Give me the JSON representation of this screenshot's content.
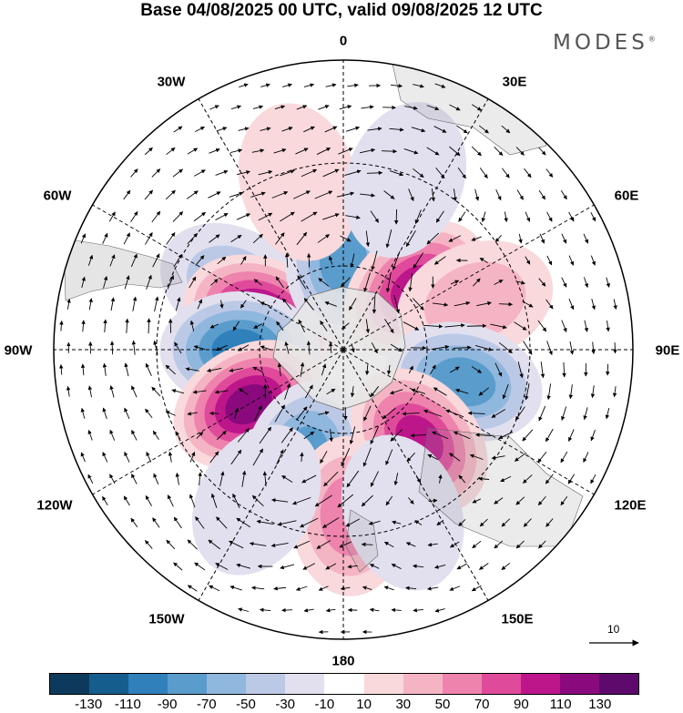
{
  "title": "Base 04/08/2025 00 UTC, valid 09/08/2025 12 UTC",
  "brand": "MODES",
  "brand_mark": "®",
  "longitude_labels": {
    "n0": "0",
    "n30e": "30E",
    "n60e": "60E",
    "n90e": "90E",
    "n120e": "120E",
    "n150e": "150E",
    "n180": "180",
    "n150w": "150W",
    "n120w": "120W",
    "n90w": "90W",
    "n60w": "60W",
    "n30w": "30W"
  },
  "vector_scale_label": "10",
  "colorbar": {
    "ticks": [
      "-130",
      "-110",
      "-90",
      "-70",
      "-50",
      "-30",
      "-10",
      "10",
      "30",
      "50",
      "70",
      "90",
      "110",
      "130"
    ],
    "colors": [
      "#0d3a5c",
      "#155d8c",
      "#2f80bb",
      "#5a9ccc",
      "#90b7de",
      "#bcc9e6",
      "#e2e0ef",
      "#ffffff",
      "#f9d9dc",
      "#f5b4c4",
      "#ee83ad",
      "#df4a9b",
      "#bd168b",
      "#8a0a7e",
      "#5d0a6c"
    ]
  },
  "anomalies": [
    {
      "label": "low",
      "lon": -60,
      "lat": -45,
      "value": -40
    },
    {
      "label": "high",
      "lon": -68,
      "lat": -57,
      "value": 120
    },
    {
      "label": "low",
      "lon": 0,
      "lat": -57,
      "value": -70
    },
    {
      "label": "high",
      "lon": 50,
      "lat": -55,
      "value": 100
    },
    {
      "label": "high",
      "lon": 70,
      "lat": -40,
      "value": 35
    },
    {
      "label": "low",
      "lon": -90,
      "lat": -52,
      "value": -90
    },
    {
      "label": "low",
      "lon": 105,
      "lat": -45,
      "value": -70
    },
    {
      "label": "high",
      "lon": -120,
      "lat": -50,
      "value": 120
    },
    {
      "label": "low",
      "lon": -160,
      "lat": -48,
      "value": -80
    },
    {
      "label": "high",
      "lon": 140,
      "lat": -47,
      "value": 100
    },
    {
      "label": "high",
      "lon": 178,
      "lat": -32,
      "value": 60
    },
    {
      "label": "high",
      "lon": -15,
      "lat": -30,
      "value": 25
    },
    {
      "label": "low",
      "lon": 20,
      "lat": -28,
      "value": -20
    },
    {
      "label": "low",
      "lon": -150,
      "lat": -30,
      "value": -25
    },
    {
      "label": "low",
      "lon": 160,
      "lat": -30,
      "value": -20
    }
  ]
}
